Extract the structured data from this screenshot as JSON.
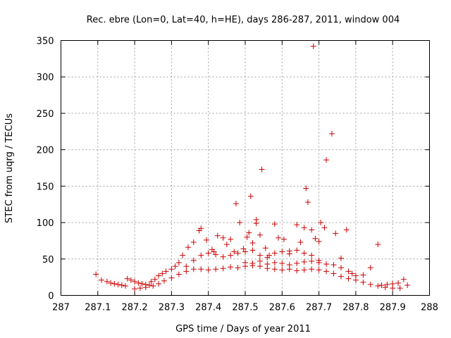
{
  "chart_data": {
    "type": "scatter",
    "title": "Rec. ebre (Lon=0, Lat=40, h=HE), days 286-287, 2011, window 004",
    "xlabel": "GPS time / Days of year 2011",
    "ylabel": "STEC from uqrg / TECUs",
    "xlim": [
      287,
      288
    ],
    "ylim": [
      0,
      350
    ],
    "xticks": [
      "287",
      "287.1",
      "287.2",
      "287.3",
      "287.4",
      "287.5",
      "287.6",
      "287.7",
      "287.8",
      "287.9",
      "288"
    ],
    "yticks": [
      "0",
      "50",
      "100",
      "150",
      "200",
      "250",
      "300",
      "350"
    ],
    "grid": true,
    "marker": "+",
    "color": "#cc0000",
    "series": [
      {
        "points": [
          [
            287.095,
            29
          ],
          [
            287.11,
            21
          ],
          [
            287.125,
            19
          ],
          [
            287.135,
            17
          ],
          [
            287.145,
            16
          ],
          [
            287.155,
            15
          ],
          [
            287.165,
            14
          ],
          [
            287.175,
            13
          ],
          [
            287.18,
            23
          ],
          [
            287.19,
            21
          ],
          [
            287.2,
            19
          ],
          [
            287.21,
            17
          ],
          [
            287.22,
            16
          ],
          [
            287.23,
            15
          ],
          [
            287.24,
            14
          ],
          [
            287.245,
            19
          ],
          [
            287.255,
            22
          ],
          [
            287.265,
            27
          ],
          [
            287.275,
            30
          ],
          [
            287.285,
            33
          ],
          [
            287.3,
            36
          ],
          [
            287.31,
            40
          ],
          [
            287.32,
            45
          ],
          [
            287.33,
            55
          ],
          [
            287.345,
            66
          ],
          [
            287.36,
            73
          ],
          [
            287.375,
            89
          ],
          [
            287.38,
            92
          ],
          [
            287.395,
            76
          ],
          [
            287.41,
            63
          ],
          [
            287.415,
            60
          ],
          [
            287.425,
            82
          ],
          [
            287.44,
            79
          ],
          [
            287.45,
            70
          ],
          [
            287.46,
            77
          ],
          [
            287.47,
            60
          ],
          [
            287.475,
            126
          ],
          [
            287.485,
            100
          ],
          [
            287.495,
            64
          ],
          [
            287.505,
            80
          ],
          [
            287.51,
            86
          ],
          [
            287.515,
            136
          ],
          [
            287.52,
            72
          ],
          [
            287.53,
            104
          ],
          [
            287.53,
            99
          ],
          [
            287.54,
            83
          ],
          [
            287.545,
            173
          ],
          [
            287.555,
            65
          ],
          [
            287.565,
            55
          ],
          [
            287.58,
            98
          ],
          [
            287.59,
            79
          ],
          [
            287.605,
            77
          ],
          [
            287.62,
            61
          ],
          [
            287.64,
            97
          ],
          [
            287.65,
            73
          ],
          [
            287.66,
            93
          ],
          [
            287.665,
            147
          ],
          [
            287.67,
            128
          ],
          [
            287.68,
            90
          ],
          [
            287.685,
            342
          ],
          [
            287.69,
            78
          ],
          [
            287.7,
            74
          ],
          [
            287.705,
            100
          ],
          [
            287.715,
            93
          ],
          [
            287.72,
            186
          ],
          [
            287.735,
            222
          ],
          [
            287.745,
            85
          ],
          [
            287.76,
            51
          ],
          [
            287.775,
            90
          ],
          [
            287.79,
            30
          ],
          [
            287.8,
            27
          ],
          [
            287.82,
            28
          ],
          [
            287.84,
            38
          ],
          [
            287.86,
            70
          ],
          [
            287.87,
            14
          ],
          [
            287.885,
            15
          ],
          [
            287.9,
            16
          ],
          [
            287.915,
            17
          ],
          [
            287.93,
            22
          ],
          [
            287.94,
            14
          ],
          [
            287.2,
            9
          ],
          [
            287.215,
            10
          ],
          [
            287.23,
            11
          ],
          [
            287.25,
            13
          ],
          [
            287.265,
            16
          ],
          [
            287.28,
            20
          ],
          [
            287.3,
            24
          ],
          [
            287.32,
            29
          ],
          [
            287.34,
            33
          ],
          [
            287.36,
            36
          ],
          [
            287.38,
            36
          ],
          [
            287.4,
            35
          ],
          [
            287.42,
            36
          ],
          [
            287.44,
            37
          ],
          [
            287.46,
            39
          ],
          [
            287.48,
            38
          ],
          [
            287.5,
            40
          ],
          [
            287.52,
            41
          ],
          [
            287.54,
            40
          ],
          [
            287.56,
            37
          ],
          [
            287.58,
            36
          ],
          [
            287.6,
            35
          ],
          [
            287.62,
            36
          ],
          [
            287.64,
            34
          ],
          [
            287.66,
            35
          ],
          [
            287.68,
            36
          ],
          [
            287.7,
            35
          ],
          [
            287.72,
            33
          ],
          [
            287.74,
            30
          ],
          [
            287.76,
            26
          ],
          [
            287.78,
            23
          ],
          [
            287.8,
            21
          ],
          [
            287.82,
            18
          ],
          [
            287.84,
            15
          ],
          [
            287.86,
            13
          ],
          [
            287.88,
            11
          ],
          [
            287.9,
            10
          ],
          [
            287.92,
            10
          ],
          [
            287.34,
            40
          ],
          [
            287.36,
            48
          ],
          [
            287.38,
            55
          ],
          [
            287.4,
            58
          ],
          [
            287.42,
            56
          ],
          [
            287.44,
            53
          ],
          [
            287.46,
            55
          ],
          [
            287.48,
            58
          ],
          [
            287.5,
            60
          ],
          [
            287.52,
            62
          ],
          [
            287.54,
            55
          ],
          [
            287.56,
            52
          ],
          [
            287.58,
            58
          ],
          [
            287.6,
            60
          ],
          [
            287.62,
            57
          ],
          [
            287.64,
            62
          ],
          [
            287.66,
            58
          ],
          [
            287.68,
            55
          ],
          [
            287.7,
            48
          ],
          [
            287.72,
            43
          ],
          [
            287.74,
            42
          ],
          [
            287.76,
            38
          ],
          [
            287.78,
            33
          ],
          [
            287.5,
            45
          ],
          [
            287.52,
            44
          ],
          [
            287.54,
            47
          ],
          [
            287.56,
            43
          ],
          [
            287.58,
            45
          ],
          [
            287.6,
            44
          ],
          [
            287.62,
            42
          ],
          [
            287.64,
            44
          ],
          [
            287.66,
            46
          ],
          [
            287.68,
            47
          ],
          [
            287.7,
            45
          ]
        ]
      }
    ]
  }
}
